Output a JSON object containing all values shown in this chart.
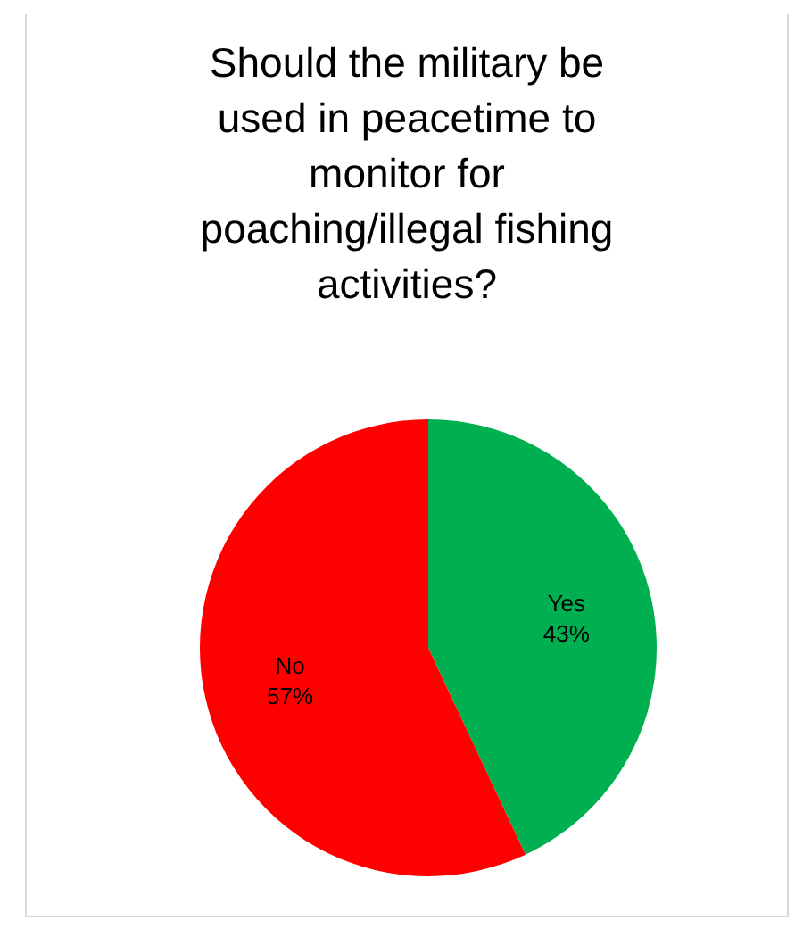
{
  "chart_data": {
    "type": "pie",
    "title": "Should the military be used in peacetime to monitor for poaching/illegal fishing activities?",
    "categories": [
      "Yes",
      "No"
    ],
    "values": [
      43,
      57
    ],
    "colors": [
      "#00b050",
      "#ff0000"
    ],
    "value_labels": [
      "43%",
      "57%"
    ],
    "legend": false
  }
}
